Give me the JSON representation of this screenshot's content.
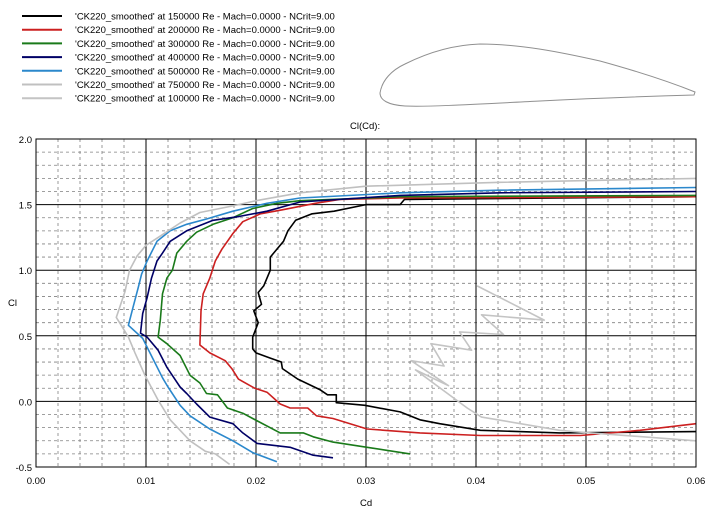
{
  "chart_data": {
    "type": "line",
    "title": "Cl(Cd):",
    "xlabel": "Cd",
    "ylabel": "Cl",
    "xlim": [
      0,
      0.06
    ],
    "ylim": [
      -0.5,
      2.0
    ],
    "xticks": [
      "0.00",
      "0.01",
      "0.02",
      "0.03",
      "0.04",
      "0.05",
      "0.06"
    ],
    "yticks": [
      "2.0",
      "1.5",
      "1.0",
      "0.5",
      "0.0",
      "-0.5"
    ],
    "grid": true,
    "legend_position": "top-left",
    "series": [
      {
        "name": "'CK220_smoothed' at 150000 Re - Mach=0.0000 - NCrit=9.00",
        "color": "#000000",
        "points": [
          [
            0.06,
            1.56
          ],
          [
            0.0335,
            1.54
          ],
          [
            0.0331,
            1.5
          ],
          [
            0.03,
            1.5
          ],
          [
            0.0271,
            1.45
          ],
          [
            0.0251,
            1.43
          ],
          [
            0.0236,
            1.38
          ],
          [
            0.0229,
            1.3
          ],
          [
            0.0225,
            1.22
          ],
          [
            0.0218,
            1.15
          ],
          [
            0.0213,
            1.1
          ],
          [
            0.0213,
            1.0
          ],
          [
            0.0207,
            0.88
          ],
          [
            0.0202,
            0.83
          ],
          [
            0.0205,
            0.74
          ],
          [
            0.0198,
            0.69
          ],
          [
            0.0202,
            0.6
          ],
          [
            0.0197,
            0.49
          ],
          [
            0.0197,
            0.4
          ],
          [
            0.02,
            0.37
          ],
          [
            0.0213,
            0.33
          ],
          [
            0.0223,
            0.3
          ],
          [
            0.0224,
            0.25
          ],
          [
            0.0238,
            0.17
          ],
          [
            0.0258,
            0.09
          ],
          [
            0.0265,
            0.05
          ],
          [
            0.0273,
            0.05
          ],
          [
            0.0273,
            -0.01
          ],
          [
            0.0299,
            -0.03
          ],
          [
            0.0331,
            -0.08
          ],
          [
            0.0349,
            -0.14
          ],
          [
            0.0367,
            -0.17
          ],
          [
            0.0404,
            -0.22
          ],
          [
            0.0476,
            -0.24
          ],
          [
            0.06,
            -0.23
          ]
        ]
      },
      {
        "name": "'CK220_smoothed' at 200000 Re - Mach=0.0000 - NCrit=9.00",
        "color": "#cc2020",
        "points": [
          [
            0.06,
            1.56
          ],
          [
            0.0331,
            1.55
          ],
          [
            0.0276,
            1.54
          ],
          [
            0.0254,
            1.51
          ],
          [
            0.0224,
            1.46
          ],
          [
            0.0204,
            1.43
          ],
          [
            0.0188,
            1.37
          ],
          [
            0.0179,
            1.28
          ],
          [
            0.0169,
            1.16
          ],
          [
            0.0163,
            1.07
          ],
          [
            0.0158,
            0.94
          ],
          [
            0.0152,
            0.82
          ],
          [
            0.015,
            0.69
          ],
          [
            0.0149,
            0.43
          ],
          [
            0.0158,
            0.37
          ],
          [
            0.0172,
            0.31
          ],
          [
            0.0178,
            0.25
          ],
          [
            0.0184,
            0.17
          ],
          [
            0.0199,
            0.1
          ],
          [
            0.021,
            0.07
          ],
          [
            0.0222,
            -0.02
          ],
          [
            0.0231,
            -0.05
          ],
          [
            0.0247,
            -0.05
          ],
          [
            0.0255,
            -0.11
          ],
          [
            0.027,
            -0.13
          ],
          [
            0.0301,
            -0.21
          ],
          [
            0.0349,
            -0.24
          ],
          [
            0.0404,
            -0.26
          ],
          [
            0.0495,
            -0.26
          ],
          [
            0.0549,
            -0.22
          ],
          [
            0.06,
            -0.17
          ]
        ]
      },
      {
        "name": "'CK220_smoothed' at 300000 Re - Mach=0.0000 - NCrit=9.00",
        "color": "#1a7a1a",
        "points": [
          [
            0.06,
            1.57
          ],
          [
            0.0331,
            1.56
          ],
          [
            0.024,
            1.53
          ],
          [
            0.0219,
            1.51
          ],
          [
            0.0197,
            1.47
          ],
          [
            0.0179,
            1.4
          ],
          [
            0.0161,
            1.35
          ],
          [
            0.0146,
            1.29
          ],
          [
            0.0137,
            1.22
          ],
          [
            0.0128,
            1.13
          ],
          [
            0.0124,
            1.0
          ],
          [
            0.0119,
            0.94
          ],
          [
            0.0115,
            0.82
          ],
          [
            0.0113,
            0.62
          ],
          [
            0.0111,
            0.49
          ],
          [
            0.0119,
            0.44
          ],
          [
            0.0131,
            0.35
          ],
          [
            0.014,
            0.2
          ],
          [
            0.0149,
            0.14
          ],
          [
            0.0155,
            0.06
          ],
          [
            0.0165,
            0.05
          ],
          [
            0.0174,
            -0.05
          ],
          [
            0.0188,
            -0.09
          ],
          [
            0.0197,
            -0.13
          ],
          [
            0.0222,
            -0.24
          ],
          [
            0.0243,
            -0.24
          ],
          [
            0.0252,
            -0.27
          ],
          [
            0.027,
            -0.31
          ],
          [
            0.0301,
            -0.35
          ],
          [
            0.034,
            -0.4
          ]
        ]
      },
      {
        "name": "'CK220_smoothed' at 400000 Re - Mach=0.0000 - NCrit=9.00",
        "color": "#000066",
        "points": [
          [
            0.06,
            1.6
          ],
          [
            0.0422,
            1.59
          ],
          [
            0.0331,
            1.57
          ],
          [
            0.024,
            1.52
          ],
          [
            0.021,
            1.45
          ],
          [
            0.0185,
            1.41
          ],
          [
            0.0161,
            1.38
          ],
          [
            0.0137,
            1.3
          ],
          [
            0.0122,
            1.22
          ],
          [
            0.0115,
            1.13
          ],
          [
            0.011,
            1.07
          ],
          [
            0.0105,
            0.94
          ],
          [
            0.0101,
            0.79
          ],
          [
            0.0097,
            0.67
          ],
          [
            0.0095,
            0.52
          ],
          [
            0.0101,
            0.49
          ],
          [
            0.0111,
            0.39
          ],
          [
            0.0119,
            0.26
          ],
          [
            0.0131,
            0.11
          ],
          [
            0.0137,
            0.06
          ],
          [
            0.0146,
            -0.02
          ],
          [
            0.0158,
            -0.12
          ],
          [
            0.0179,
            -0.17
          ],
          [
            0.0188,
            -0.24
          ],
          [
            0.0201,
            -0.32
          ],
          [
            0.0231,
            -0.35
          ],
          [
            0.0252,
            -0.41
          ],
          [
            0.027,
            -0.43
          ]
        ]
      },
      {
        "name": "'CK220_smoothed' at 500000 Re - Mach=0.0000 - NCrit=9.00",
        "color": "#2b88cc",
        "points": [
          [
            0.06,
            1.63
          ],
          [
            0.0422,
            1.61
          ],
          [
            0.0331,
            1.59
          ],
          [
            0.024,
            1.55
          ],
          [
            0.021,
            1.51
          ],
          [
            0.0179,
            1.45
          ],
          [
            0.0155,
            1.39
          ],
          [
            0.0137,
            1.35
          ],
          [
            0.0122,
            1.3
          ],
          [
            0.011,
            1.22
          ],
          [
            0.0101,
            1.07
          ],
          [
            0.0096,
            0.97
          ],
          [
            0.0093,
            0.87
          ],
          [
            0.0088,
            0.71
          ],
          [
            0.0084,
            0.58
          ],
          [
            0.0097,
            0.48
          ],
          [
            0.0106,
            0.33
          ],
          [
            0.0115,
            0.18
          ],
          [
            0.012,
            0.11
          ],
          [
            0.0131,
            -0.03
          ],
          [
            0.014,
            -0.11
          ],
          [
            0.0158,
            -0.21
          ],
          [
            0.0179,
            -0.3
          ],
          [
            0.0197,
            -0.39
          ],
          [
            0.0219,
            -0.46
          ]
        ]
      },
      {
        "name": "'CK220_smoothed' at 750000 Re - Mach=0.0000 - NCrit=9.00",
        "color": "#c0c0c0",
        "points": [
          [
            0.06,
            1.7
          ],
          [
            0.0422,
            1.67
          ],
          [
            0.03,
            1.64
          ],
          [
            0.024,
            1.59
          ],
          [
            0.02,
            1.53
          ],
          [
            0.0179,
            1.49
          ],
          [
            0.0149,
            1.44
          ],
          [
            0.0131,
            1.36
          ],
          [
            0.0113,
            1.26
          ],
          [
            0.01,
            1.19
          ],
          [
            0.0092,
            1.11
          ],
          [
            0.0085,
            1.0
          ],
          [
            0.0081,
            0.84
          ],
          [
            0.0075,
            0.69
          ],
          [
            0.0073,
            0.64
          ],
          [
            0.0076,
            0.6
          ],
          [
            0.0084,
            0.49
          ],
          [
            0.009,
            0.37
          ],
          [
            0.0099,
            0.2
          ],
          [
            0.0111,
            0.01
          ],
          [
            0.0122,
            -0.14
          ],
          [
            0.0131,
            -0.22
          ],
          [
            0.014,
            -0.3
          ],
          [
            0.0154,
            -0.38
          ],
          [
            0.0163,
            -0.4
          ],
          [
            0.0176,
            -0.48
          ]
        ]
      },
      {
        "name": "'CK220_smoothed' at 100000 Re - Mach=0.0000 - NCrit=9.00",
        "color": "#c4c4c4",
        "points": [
          [
            0.0401,
            0.88
          ],
          [
            0.0462,
            0.62
          ],
          [
            0.0405,
            0.66
          ],
          [
            0.0425,
            0.51
          ],
          [
            0.0385,
            0.53
          ],
          [
            0.0396,
            0.39
          ],
          [
            0.0359,
            0.44
          ],
          [
            0.0371,
            0.27
          ],
          [
            0.0341,
            0.31
          ],
          [
            0.0375,
            0.12
          ],
          [
            0.0345,
            0.24
          ],
          [
            0.0392,
            -0.05
          ],
          [
            0.0405,
            -0.12
          ],
          [
            0.0476,
            -0.22
          ],
          [
            0.0504,
            -0.24
          ],
          [
            0.06,
            -0.3
          ]
        ]
      }
    ]
  }
}
